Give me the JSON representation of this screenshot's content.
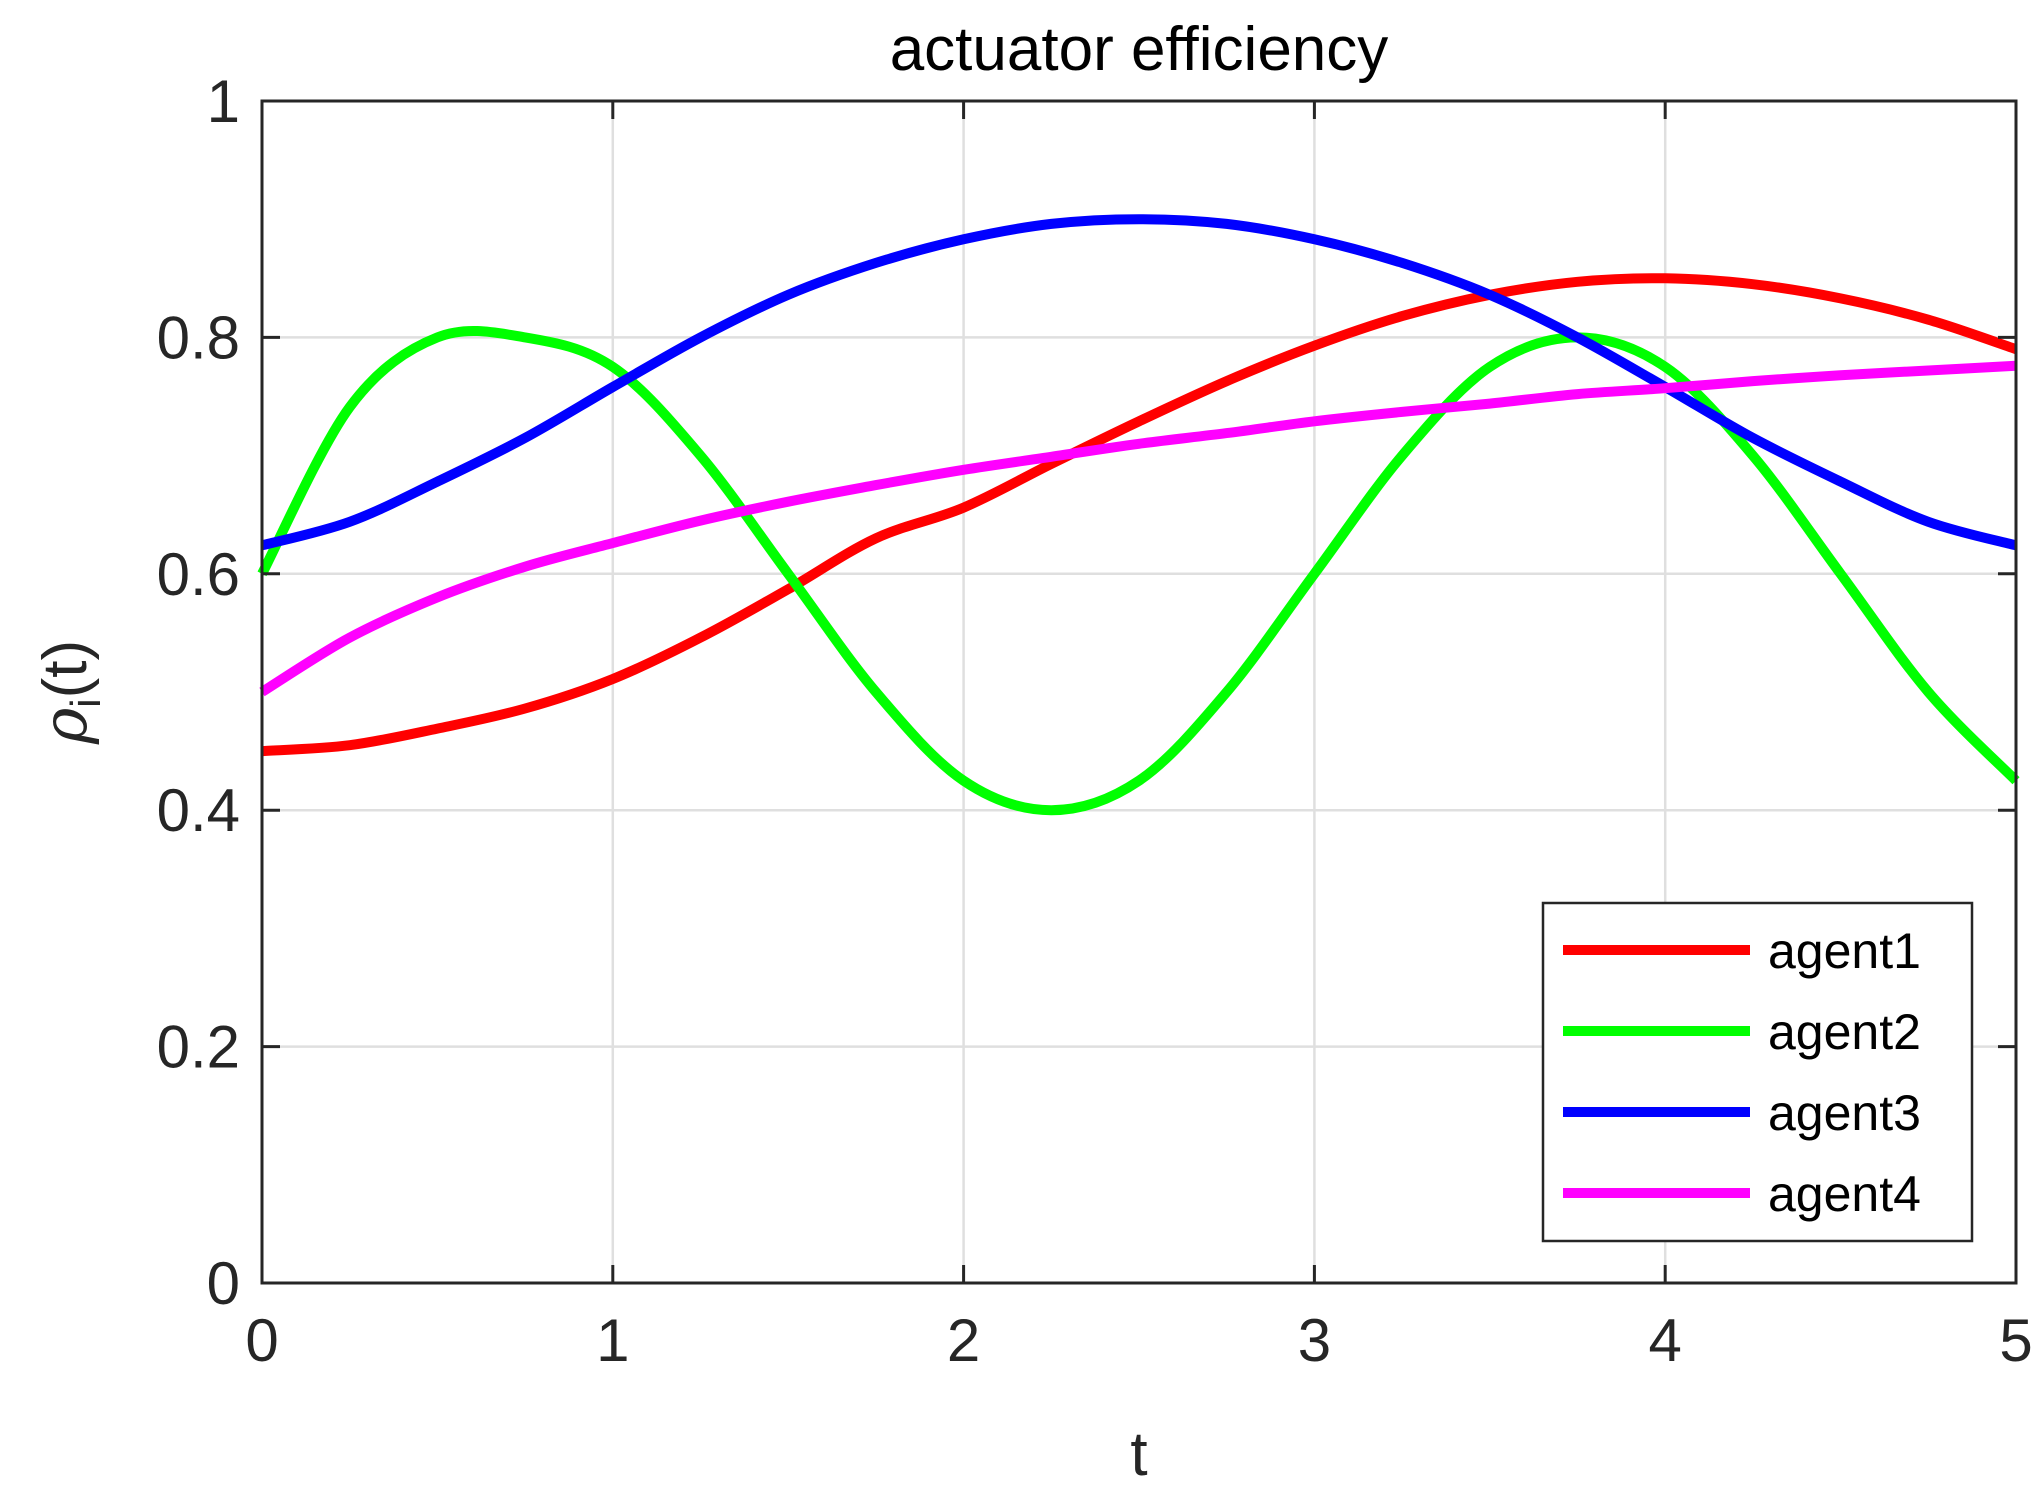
{
  "chart_data": {
    "type": "line",
    "title": "actuator efficiency",
    "xlabel": "t",
    "ylabel": "ρ_i(t)",
    "xlim": [
      0,
      5
    ],
    "ylim": [
      0,
      1
    ],
    "x_ticks": [
      0,
      1,
      2,
      3,
      4,
      5
    ],
    "y_ticks": [
      0,
      0.2,
      0.4,
      0.6,
      0.8,
      1
    ],
    "x_tick_labels": [
      "0",
      "1",
      "2",
      "3",
      "4",
      "5"
    ],
    "y_tick_labels": [
      "0",
      "0.2",
      "0.4",
      "0.6",
      "0.8",
      "1"
    ],
    "grid": true,
    "legend_position": "bottom-right",
    "x": [
      0,
      0.25,
      0.5,
      0.75,
      1,
      1.25,
      1.5,
      1.75,
      2,
      2.25,
      2.5,
      2.75,
      3,
      3.25,
      3.5,
      3.75,
      4,
      4.25,
      4.5,
      4.75,
      5
    ],
    "series": [
      {
        "name": "agent1",
        "color": "#ff0000",
        "values": [
          0.45,
          0.455,
          0.469,
          0.486,
          0.511,
          0.546,
          0.587,
          0.63,
          0.656,
          0.693,
          0.729,
          0.763,
          0.793,
          0.818,
          0.836,
          0.847,
          0.85,
          0.845,
          0.833,
          0.815,
          0.79
        ]
      },
      {
        "name": "agent2",
        "color": "#00ff00",
        "values": [
          0.6,
          0.741,
          0.8,
          0.8,
          0.775,
          0.7,
          0.6,
          0.5,
          0.425,
          0.4,
          0.425,
          0.5,
          0.6,
          0.7,
          0.775,
          0.8,
          0.775,
          0.7,
          0.6,
          0.5,
          0.425
        ]
      },
      {
        "name": "agent3",
        "color": "#0000ff",
        "values": [
          0.624,
          0.644,
          0.678,
          0.715,
          0.758,
          0.8,
          0.836,
          0.863,
          0.883,
          0.896,
          0.9,
          0.896,
          0.883,
          0.863,
          0.836,
          0.8,
          0.758,
          0.715,
          0.678,
          0.644,
          0.624
        ]
      },
      {
        "name": "agent4",
        "color": "#ff00ff",
        "values": [
          0.5,
          0.546,
          0.58,
          0.606,
          0.626,
          0.645,
          0.661,
          0.675,
          0.688,
          0.699,
          0.71,
          0.719,
          0.729,
          0.737,
          0.744,
          0.752,
          0.757,
          0.763,
          0.768,
          0.772,
          0.776
        ]
      }
    ]
  }
}
